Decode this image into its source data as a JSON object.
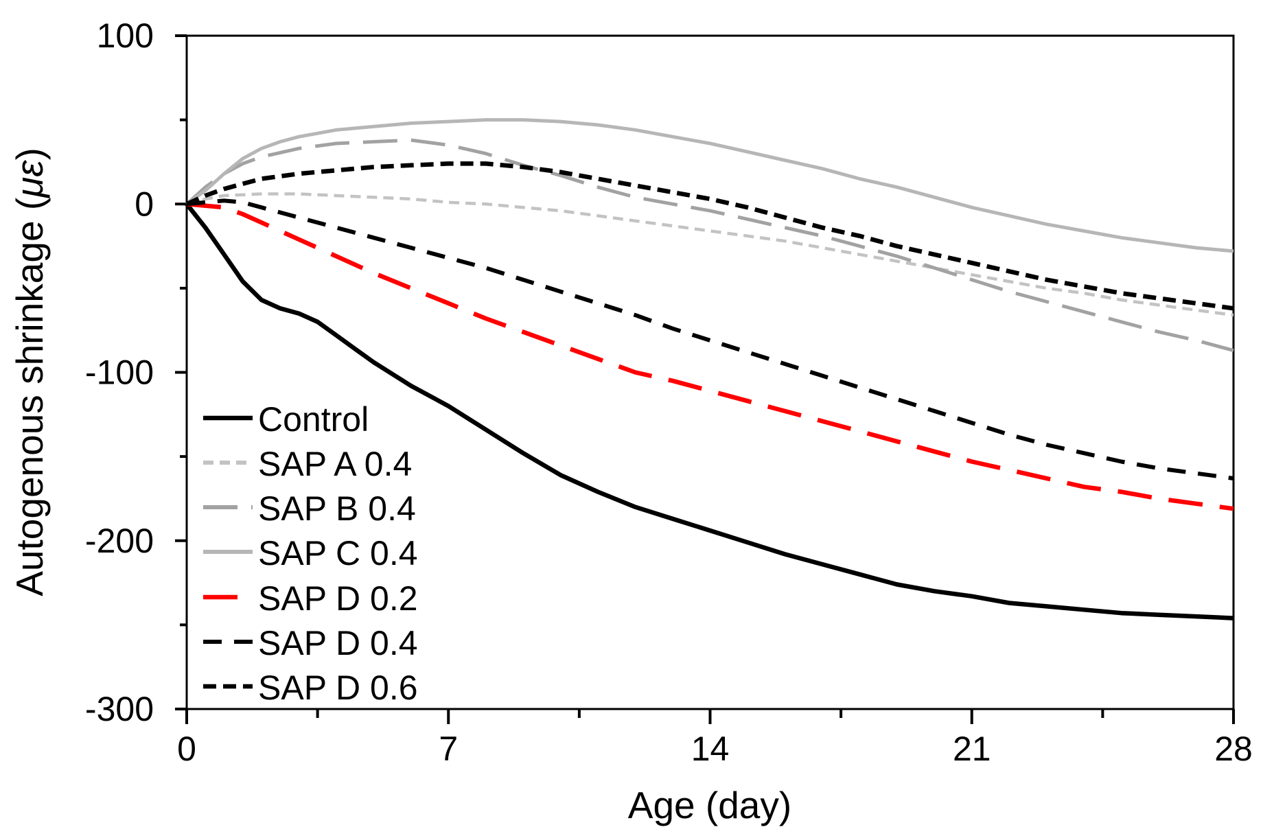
{
  "figure": {
    "background": "#ffffff",
    "frame_color": "#000000"
  },
  "chart_data": {
    "type": "line",
    "title": "",
    "xlabel": "Age (day)",
    "ylabel": "Autogenous shrinkage (με)",
    "ylabel_italic_part": "με",
    "xlim": [
      0,
      28
    ],
    "ylim": [
      -300,
      100
    ],
    "x_ticks": [
      0,
      7,
      14,
      21,
      28
    ],
    "x_minor_ticks": [
      3.5,
      10.5,
      17.5,
      24.5
    ],
    "y_ticks": [
      100,
      0,
      -100,
      -200,
      -300
    ],
    "y_minor_ticks": [
      50,
      -50,
      -150,
      -250
    ],
    "grid": false,
    "legend_position": "inside lower-left",
    "series": [
      {
        "name": "Control",
        "color": "#000000",
        "dash": null,
        "width": 6.5,
        "points": [
          [
            0,
            0
          ],
          [
            0.5,
            -14
          ],
          [
            1,
            -30
          ],
          [
            1.5,
            -46
          ],
          [
            2,
            -57
          ],
          [
            2.5,
            -62
          ],
          [
            3,
            -65
          ],
          [
            3.5,
            -70
          ],
          [
            4,
            -78
          ],
          [
            4.5,
            -86
          ],
          [
            5,
            -94
          ],
          [
            6,
            -108
          ],
          [
            7,
            -120
          ],
          [
            8,
            -134
          ],
          [
            9,
            -148
          ],
          [
            10,
            -161
          ],
          [
            11,
            -171
          ],
          [
            12,
            -180
          ],
          [
            13,
            -187
          ],
          [
            14,
            -194
          ],
          [
            15,
            -201
          ],
          [
            16,
            -208
          ],
          [
            17,
            -214
          ],
          [
            18,
            -220
          ],
          [
            19,
            -226
          ],
          [
            20,
            -230
          ],
          [
            21,
            -233
          ],
          [
            22,
            -237
          ],
          [
            23,
            -239
          ],
          [
            24,
            -241
          ],
          [
            25,
            -243
          ],
          [
            26,
            -244
          ],
          [
            27,
            -245
          ],
          [
            28,
            -246
          ]
        ]
      },
      {
        "name": "SAP A 0.4",
        "color": "#c3c3c3",
        "dash": [
          15,
          9
        ],
        "width": 4.5,
        "points": [
          [
            0,
            0
          ],
          [
            0.5,
            3
          ],
          [
            1,
            5
          ],
          [
            2,
            6
          ],
          [
            3,
            6
          ],
          [
            4,
            5
          ],
          [
            5,
            4
          ],
          [
            6,
            3
          ],
          [
            7,
            1
          ],
          [
            8,
            0
          ],
          [
            9,
            -2
          ],
          [
            10,
            -4
          ],
          [
            11,
            -7
          ],
          [
            12,
            -10
          ],
          [
            13,
            -13
          ],
          [
            14,
            -16
          ],
          [
            15,
            -19
          ],
          [
            16,
            -22
          ],
          [
            17,
            -26
          ],
          [
            18,
            -30
          ],
          [
            19,
            -34
          ],
          [
            20,
            -38
          ],
          [
            21,
            -42
          ],
          [
            22,
            -46
          ],
          [
            23,
            -50
          ],
          [
            24,
            -53
          ],
          [
            25,
            -57
          ],
          [
            26,
            -60
          ],
          [
            27,
            -63
          ],
          [
            28,
            -66
          ]
        ]
      },
      {
        "name": "SAP B 0.4",
        "color": "#a2a2a2",
        "dash": [
          50,
          20
        ],
        "width": 5,
        "points": [
          [
            0,
            0
          ],
          [
            0.5,
            10
          ],
          [
            1,
            18
          ],
          [
            1.5,
            24
          ],
          [
            2,
            28
          ],
          [
            3,
            33
          ],
          [
            4,
            36
          ],
          [
            5,
            37
          ],
          [
            6,
            38
          ],
          [
            7,
            35
          ],
          [
            8,
            30
          ],
          [
            9,
            23
          ],
          [
            10,
            17
          ],
          [
            11,
            10
          ],
          [
            12,
            4
          ],
          [
            13,
            0
          ],
          [
            14,
            -4
          ],
          [
            15,
            -9
          ],
          [
            16,
            -14
          ],
          [
            17,
            -19
          ],
          [
            18,
            -25
          ],
          [
            19,
            -31
          ],
          [
            20,
            -38
          ],
          [
            21,
            -45
          ],
          [
            22,
            -52
          ],
          [
            23,
            -58
          ],
          [
            24,
            -64
          ],
          [
            25,
            -70
          ],
          [
            26,
            -76
          ],
          [
            27,
            -81
          ],
          [
            28,
            -87
          ]
        ]
      },
      {
        "name": "SAP C 0.4",
        "color": "#b6b6b6",
        "dash": null,
        "width": 5,
        "points": [
          [
            0,
            0
          ],
          [
            0.5,
            8
          ],
          [
            1,
            18
          ],
          [
            1.5,
            27
          ],
          [
            2,
            33
          ],
          [
            2.5,
            37
          ],
          [
            3,
            40
          ],
          [
            4,
            44
          ],
          [
            5,
            46
          ],
          [
            6,
            48
          ],
          [
            7,
            49
          ],
          [
            8,
            50
          ],
          [
            9,
            50
          ],
          [
            10,
            49
          ],
          [
            11,
            47
          ],
          [
            12,
            44
          ],
          [
            13,
            40
          ],
          [
            14,
            36
          ],
          [
            15,
            31
          ],
          [
            16,
            26
          ],
          [
            17,
            21
          ],
          [
            18,
            15
          ],
          [
            19,
            10
          ],
          [
            20,
            4
          ],
          [
            21,
            -2
          ],
          [
            22,
            -7
          ],
          [
            23,
            -12
          ],
          [
            24,
            -16
          ],
          [
            25,
            -20
          ],
          [
            26,
            -23
          ],
          [
            27,
            -26
          ],
          [
            28,
            -28
          ]
        ]
      },
      {
        "name": "SAP D 0.2",
        "color": "#ff0000",
        "dash": [
          50,
          25
        ],
        "width": 6.5,
        "points": [
          [
            0,
            0
          ],
          [
            1,
            -2
          ],
          [
            1.5,
            -6
          ],
          [
            2,
            -11
          ],
          [
            3,
            -21
          ],
          [
            4,
            -31
          ],
          [
            5,
            -41
          ],
          [
            6,
            -50
          ],
          [
            7,
            -59
          ],
          [
            8,
            -68
          ],
          [
            9,
            -76
          ],
          [
            10,
            -84
          ],
          [
            11,
            -92
          ],
          [
            12,
            -100
          ],
          [
            13,
            -105
          ],
          [
            14,
            -111
          ],
          [
            15,
            -117
          ],
          [
            16,
            -123
          ],
          [
            17,
            -129
          ],
          [
            18,
            -135
          ],
          [
            19,
            -141
          ],
          [
            20,
            -147
          ],
          [
            21,
            -153
          ],
          [
            22,
            -158
          ],
          [
            23,
            -163
          ],
          [
            24,
            -168
          ],
          [
            25,
            -171
          ],
          [
            26,
            -175
          ],
          [
            27,
            -178
          ],
          [
            28,
            -181
          ]
        ]
      },
      {
        "name": "SAP D 0.4",
        "color": "#000000",
        "dash": [
          27,
          18
        ],
        "width": 6,
        "points": [
          [
            0,
            0
          ],
          [
            0.5,
            1
          ],
          [
            1,
            2
          ],
          [
            1.5,
            1
          ],
          [
            2,
            -2
          ],
          [
            3,
            -8
          ],
          [
            4,
            -14
          ],
          [
            5,
            -20
          ],
          [
            6,
            -26
          ],
          [
            7,
            -32
          ],
          [
            8,
            -38
          ],
          [
            9,
            -45
          ],
          [
            10,
            -52
          ],
          [
            11,
            -59
          ],
          [
            12,
            -66
          ],
          [
            13,
            -74
          ],
          [
            14,
            -81
          ],
          [
            15,
            -88
          ],
          [
            16,
            -95
          ],
          [
            17,
            -102
          ],
          [
            18,
            -109
          ],
          [
            19,
            -116
          ],
          [
            20,
            -123
          ],
          [
            21,
            -130
          ],
          [
            22,
            -137
          ],
          [
            23,
            -143
          ],
          [
            24,
            -148
          ],
          [
            25,
            -153
          ],
          [
            26,
            -157
          ],
          [
            27,
            -160
          ],
          [
            28,
            -163
          ]
        ]
      },
      {
        "name": "SAP D 0.6",
        "color": "#000000",
        "dash": [
          19,
          10
        ],
        "width": 6.5,
        "points": [
          [
            0,
            0
          ],
          [
            0.5,
            5
          ],
          [
            1,
            9
          ],
          [
            1.5,
            12
          ],
          [
            2,
            15
          ],
          [
            3,
            18
          ],
          [
            4,
            20
          ],
          [
            5,
            22
          ],
          [
            6,
            23
          ],
          [
            7,
            24
          ],
          [
            8,
            24
          ],
          [
            9,
            22
          ],
          [
            10,
            19
          ],
          [
            11,
            15
          ],
          [
            12,
            11
          ],
          [
            13,
            7
          ],
          [
            14,
            3
          ],
          [
            15,
            -2
          ],
          [
            16,
            -8
          ],
          [
            17,
            -14
          ],
          [
            18,
            -19
          ],
          [
            19,
            -25
          ],
          [
            20,
            -30
          ],
          [
            21,
            -35
          ],
          [
            22,
            -40
          ],
          [
            23,
            -45
          ],
          [
            24,
            -49
          ],
          [
            25,
            -53
          ],
          [
            26,
            -56
          ],
          [
            27,
            -59
          ],
          [
            28,
            -62
          ]
        ]
      }
    ]
  }
}
